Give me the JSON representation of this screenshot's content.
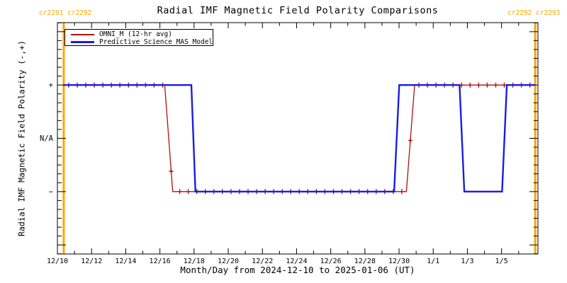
{
  "header": {
    "title": "Radial IMF Magnetic Field Polarity Comparisons",
    "cr_left": "cr2291 cr2292",
    "cr_right": "cr2292 cr2293"
  },
  "legend": {
    "entries": [
      {
        "label": "OMNI_M (12-hr avg)",
        "color": "#ac1212"
      },
      {
        "label": "Predictive Science MAS Model",
        "color": "#1c1ce0"
      }
    ]
  },
  "colors": {
    "boundary_orange": "#ffa500",
    "axis_black": "#000000",
    "background": "#ffffff"
  },
  "chart_data": {
    "type": "line",
    "subtype": "step-polarity-comparison",
    "title": "Radial IMF Magnetic Field Polarity Comparisons",
    "xlabel": "Month/Day from 2024-12-10 to 2025-01-06 (UT)",
    "ylabel": "Radial IMF Magnetic Field Polarity (-,+)",
    "x_unit": "days since 2024-12-10 00:00 UT",
    "xlim": [
      0,
      28.13
    ],
    "ylim": [
      -2.17,
      2.17
    ],
    "grid": false,
    "legend_position": "top-left-inside",
    "x_major_ticks": [
      {
        "day": 0,
        "label": "12/10"
      },
      {
        "day": 2,
        "label": "12/12"
      },
      {
        "day": 4,
        "label": "12/14"
      },
      {
        "day": 6,
        "label": "12/16"
      },
      {
        "day": 8,
        "label": "12/18"
      },
      {
        "day": 10,
        "label": "12/20"
      },
      {
        "day": 12,
        "label": "12/22"
      },
      {
        "day": 14,
        "label": "12/24"
      },
      {
        "day": 16,
        "label": "12/26"
      },
      {
        "day": 18,
        "label": "12/28"
      },
      {
        "day": 20,
        "label": "12/30"
      },
      {
        "day": 22,
        "label": "1/1"
      },
      {
        "day": 24,
        "label": "1/3"
      },
      {
        "day": 26,
        "label": "1/5"
      }
    ],
    "x_minor_days": [
      1,
      3,
      5,
      7,
      9,
      11,
      13,
      15,
      17,
      19,
      21,
      23,
      25,
      27
    ],
    "y_major_ticks": [
      {
        "value": 2,
        "label": ""
      },
      {
        "value": 1,
        "label": "+"
      },
      {
        "value": 0,
        "label": "N/A"
      },
      {
        "value": -1,
        "label": "−"
      },
      {
        "value": -2,
        "label": ""
      }
    ],
    "y_minor_step": 0.16667,
    "cr_boundaries": [
      {
        "day": 0.37,
        "label": "cr2291/cr2292"
      },
      {
        "day": 27.97,
        "label": "cr2292/cr2293"
      }
    ],
    "series": [
      {
        "name": "OMNI_M (12-hr avg)",
        "color": "#ac1212",
        "line_width": 1.3,
        "marker": "plus",
        "marker_first_day": 0.66,
        "marker_interval_days": 0.5,
        "marker_last_day": 27.85,
        "points": [
          [
            0.37,
            1
          ],
          [
            6.28,
            1
          ],
          [
            6.75,
            -1
          ],
          [
            20.43,
            -1
          ],
          [
            20.91,
            1
          ],
          [
            27.97,
            1
          ]
        ]
      },
      {
        "name": "Predictive Science MAS Model",
        "color": "#1c1ce0",
        "line_width": 2.4,
        "marker": "none",
        "points": [
          [
            0.33,
            1
          ],
          [
            7.84,
            1
          ],
          [
            8.08,
            -1
          ],
          [
            19.71,
            -1
          ],
          [
            20.01,
            1
          ],
          [
            23.54,
            1
          ],
          [
            23.82,
            -1
          ],
          [
            26.03,
            -1
          ],
          [
            26.31,
            1
          ],
          [
            27.97,
            1
          ]
        ]
      }
    ]
  }
}
